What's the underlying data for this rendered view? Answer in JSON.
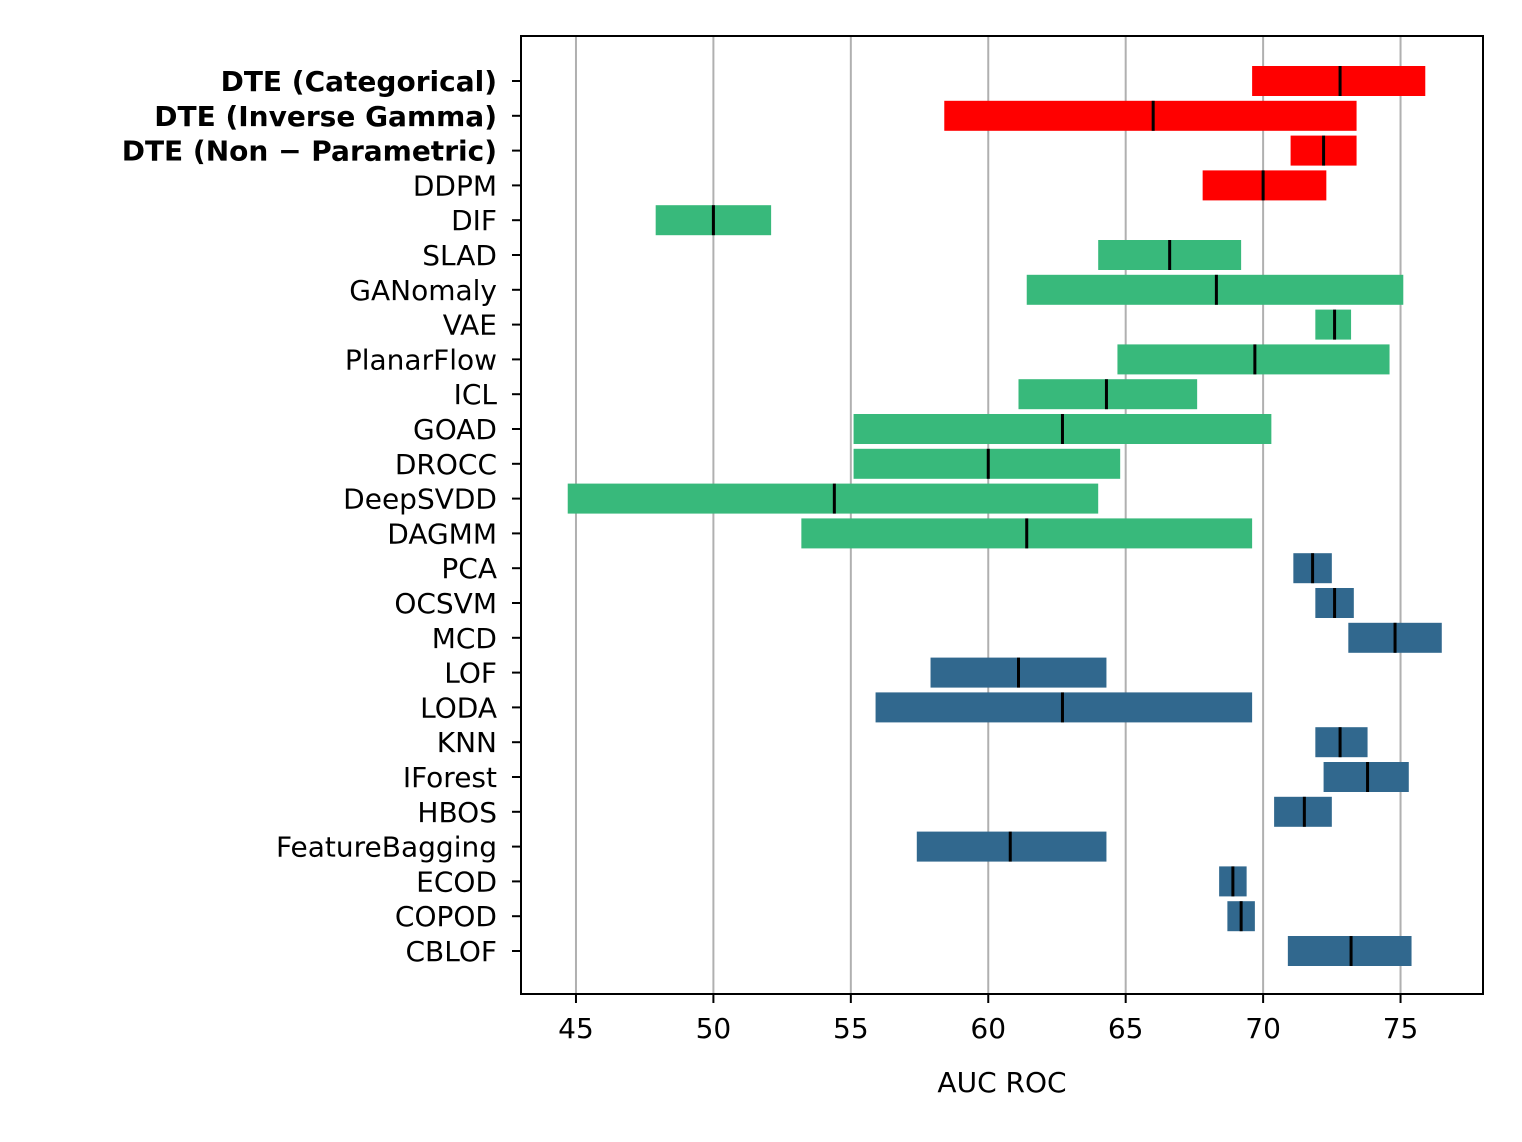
{
  "chart_data": {
    "type": "bar",
    "orientation": "horizontal-range",
    "title": "",
    "xlabel": "AUC ROC",
    "ylabel": "",
    "xlim": [
      43,
      78
    ],
    "xticks": [
      45,
      50,
      55,
      60,
      65,
      70,
      75
    ],
    "grid": "x",
    "colors": {
      "proposed": "#ff0000",
      "deep": "#38b97b",
      "classical": "#31688e",
      "median": "#000000"
    },
    "series": [
      {
        "name": "DTE (Categorical)",
        "low": 69.6,
        "median": 72.8,
        "high": 75.9,
        "group": "proposed",
        "bold": true
      },
      {
        "name": "DTE (Inverse Gamma)",
        "low": 58.4,
        "median": 66.0,
        "high": 73.4,
        "group": "proposed",
        "bold": true
      },
      {
        "name": "DTE (Non − Parametric)",
        "low": 71.0,
        "median": 72.2,
        "high": 73.4,
        "group": "proposed",
        "bold": true
      },
      {
        "name": "DDPM",
        "low": 67.8,
        "median": 70.0,
        "high": 72.3,
        "group": "proposed",
        "bold": false
      },
      {
        "name": "DIF",
        "low": 47.9,
        "median": 50.0,
        "high": 52.1,
        "group": "deep",
        "bold": false
      },
      {
        "name": "SLAD",
        "low": 64.0,
        "median": 66.6,
        "high": 69.2,
        "group": "deep",
        "bold": false
      },
      {
        "name": "GANomaly",
        "low": 61.4,
        "median": 68.3,
        "high": 75.1,
        "group": "deep",
        "bold": false
      },
      {
        "name": "VAE",
        "low": 71.9,
        "median": 72.6,
        "high": 73.2,
        "group": "deep",
        "bold": false
      },
      {
        "name": "PlanarFlow",
        "low": 64.7,
        "median": 69.7,
        "high": 74.6,
        "group": "deep",
        "bold": false
      },
      {
        "name": "ICL",
        "low": 61.1,
        "median": 64.3,
        "high": 67.6,
        "group": "deep",
        "bold": false
      },
      {
        "name": "GOAD",
        "low": 55.1,
        "median": 62.7,
        "high": 70.3,
        "group": "deep",
        "bold": false
      },
      {
        "name": "DROCC",
        "low": 55.1,
        "median": 60.0,
        "high": 64.8,
        "group": "deep",
        "bold": false
      },
      {
        "name": "DeepSVDD",
        "low": 44.7,
        "median": 54.4,
        "high": 64.0,
        "group": "deep",
        "bold": false
      },
      {
        "name": "DAGMM",
        "low": 53.2,
        "median": 61.4,
        "high": 69.6,
        "group": "deep",
        "bold": false
      },
      {
        "name": "PCA",
        "low": 71.1,
        "median": 71.8,
        "high": 72.5,
        "group": "classical",
        "bold": false
      },
      {
        "name": "OCSVM",
        "low": 71.9,
        "median": 72.6,
        "high": 73.3,
        "group": "classical",
        "bold": false
      },
      {
        "name": "MCD",
        "low": 73.1,
        "median": 74.8,
        "high": 76.5,
        "group": "classical",
        "bold": false
      },
      {
        "name": "LOF",
        "low": 57.9,
        "median": 61.1,
        "high": 64.3,
        "group": "classical",
        "bold": false
      },
      {
        "name": "LODA",
        "low": 55.9,
        "median": 62.7,
        "high": 69.6,
        "group": "classical",
        "bold": false
      },
      {
        "name": "KNN",
        "low": 71.9,
        "median": 72.8,
        "high": 73.8,
        "group": "classical",
        "bold": false
      },
      {
        "name": "IForest",
        "low": 72.2,
        "median": 73.8,
        "high": 75.3,
        "group": "classical",
        "bold": false
      },
      {
        "name": "HBOS",
        "low": 70.4,
        "median": 71.5,
        "high": 72.5,
        "group": "classical",
        "bold": false
      },
      {
        "name": "FeatureBagging",
        "low": 57.4,
        "median": 60.8,
        "high": 64.3,
        "group": "classical",
        "bold": false
      },
      {
        "name": "ECOD",
        "low": 68.4,
        "median": 68.9,
        "high": 69.4,
        "group": "classical",
        "bold": false
      },
      {
        "name": "COPOD",
        "low": 68.7,
        "median": 69.2,
        "high": 69.7,
        "group": "classical",
        "bold": false
      },
      {
        "name": "CBLOF",
        "low": 70.9,
        "median": 73.2,
        "high": 75.4,
        "group": "classical",
        "bold": false
      }
    ]
  }
}
